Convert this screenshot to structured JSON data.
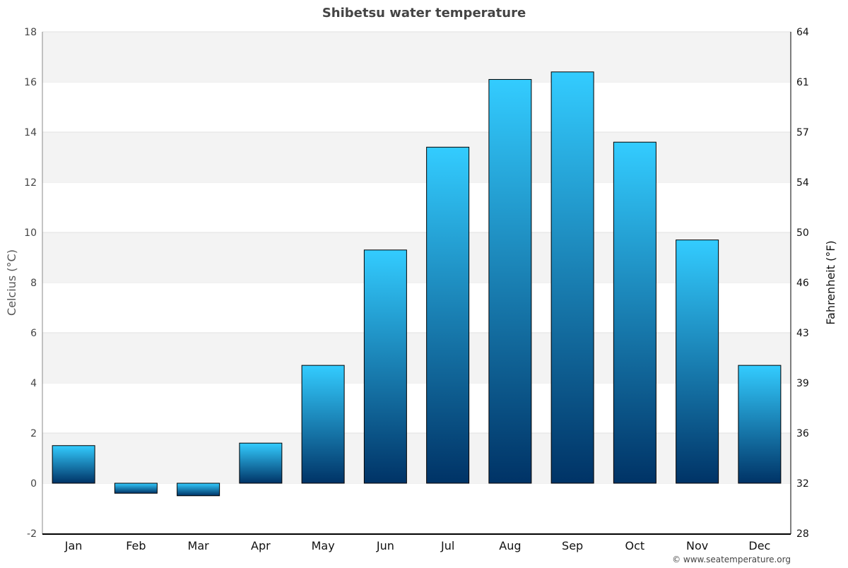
{
  "chart_data": {
    "type": "bar",
    "title": "Shibetsu water temperature",
    "ylabel": "Celcius (°C)",
    "y2label": "Fahrenheit (°F)",
    "categories": [
      "Jan",
      "Feb",
      "Mar",
      "Apr",
      "May",
      "Jun",
      "Jul",
      "Aug",
      "Sep",
      "Oct",
      "Nov",
      "Dec"
    ],
    "values": [
      1.5,
      -0.4,
      -0.5,
      1.6,
      4.7,
      9.3,
      13.4,
      16.1,
      16.4,
      13.6,
      9.7,
      4.7
    ],
    "ylim": [
      -2,
      18
    ],
    "yticks": [
      "-2",
      "0",
      "2",
      "4",
      "6",
      "8",
      "10",
      "12",
      "14",
      "16",
      "18"
    ],
    "y2ticks": [
      "28",
      "32",
      "36",
      "39",
      "43",
      "46",
      "50",
      "54",
      "57",
      "61",
      "64"
    ],
    "grid": true,
    "colors": {
      "bar_top": "#33ccff",
      "bar_bottom": "#003366",
      "band": "#f3f3f3"
    }
  },
  "footer": "© www.seatemperature.org"
}
